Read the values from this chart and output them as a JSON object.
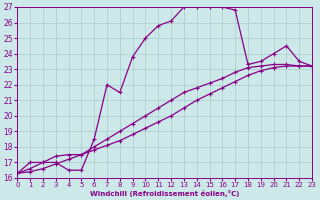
{
  "xlabel": "Windchill (Refroidissement éolien,°C)",
  "background_color": "#cce8e8",
  "grid_color": "#aacccc",
  "line_color": "#880088",
  "xlim": [
    0,
    23
  ],
  "ylim": [
    16,
    27
  ],
  "xticks": [
    0,
    1,
    2,
    3,
    4,
    5,
    6,
    7,
    8,
    9,
    10,
    11,
    12,
    13,
    14,
    15,
    16,
    17,
    18,
    19,
    20,
    21,
    22,
    23
  ],
  "yticks": [
    16,
    17,
    18,
    19,
    20,
    21,
    22,
    23,
    24,
    25,
    26,
    27
  ],
  "curve1_x": [
    0,
    1,
    2,
    3,
    4,
    5,
    6,
    7,
    8,
    9,
    10,
    11,
    12,
    13,
    14,
    15,
    16,
    17,
    18,
    19,
    20,
    21,
    22,
    23
  ],
  "curve1_y": [
    16.3,
    17.0,
    17.0,
    17.0,
    16.5,
    16.5,
    18.5,
    22.0,
    21.5,
    23.8,
    25.0,
    25.8,
    26.1,
    27.0,
    27.0,
    27.0,
    27.0,
    26.8,
    23.3,
    23.5,
    24.0,
    24.5,
    23.5,
    23.2
  ],
  "curve2_x": [
    0,
    1,
    2,
    3,
    4,
    5,
    6,
    7,
    8,
    9,
    10,
    11,
    12,
    13,
    14,
    15,
    16,
    17,
    18,
    19,
    20,
    21,
    22,
    23
  ],
  "curve2_y": [
    16.3,
    16.4,
    16.6,
    16.9,
    17.2,
    17.5,
    17.8,
    18.1,
    18.4,
    18.8,
    19.2,
    19.6,
    20.0,
    20.5,
    21.0,
    21.4,
    21.8,
    22.2,
    22.6,
    22.9,
    23.1,
    23.2,
    23.2,
    23.2
  ],
  "curve3_x": [
    0,
    1,
    2,
    3,
    4,
    5,
    6,
    7,
    8,
    9,
    10,
    11,
    12,
    13,
    14,
    15,
    16,
    17,
    18,
    19,
    20,
    21,
    22,
    23
  ],
  "curve3_y": [
    16.3,
    16.6,
    17.0,
    17.4,
    17.5,
    17.5,
    18.0,
    18.5,
    19.0,
    19.5,
    20.0,
    20.5,
    21.0,
    21.5,
    21.8,
    22.1,
    22.4,
    22.8,
    23.1,
    23.2,
    23.3,
    23.3,
    23.2,
    23.2
  ]
}
